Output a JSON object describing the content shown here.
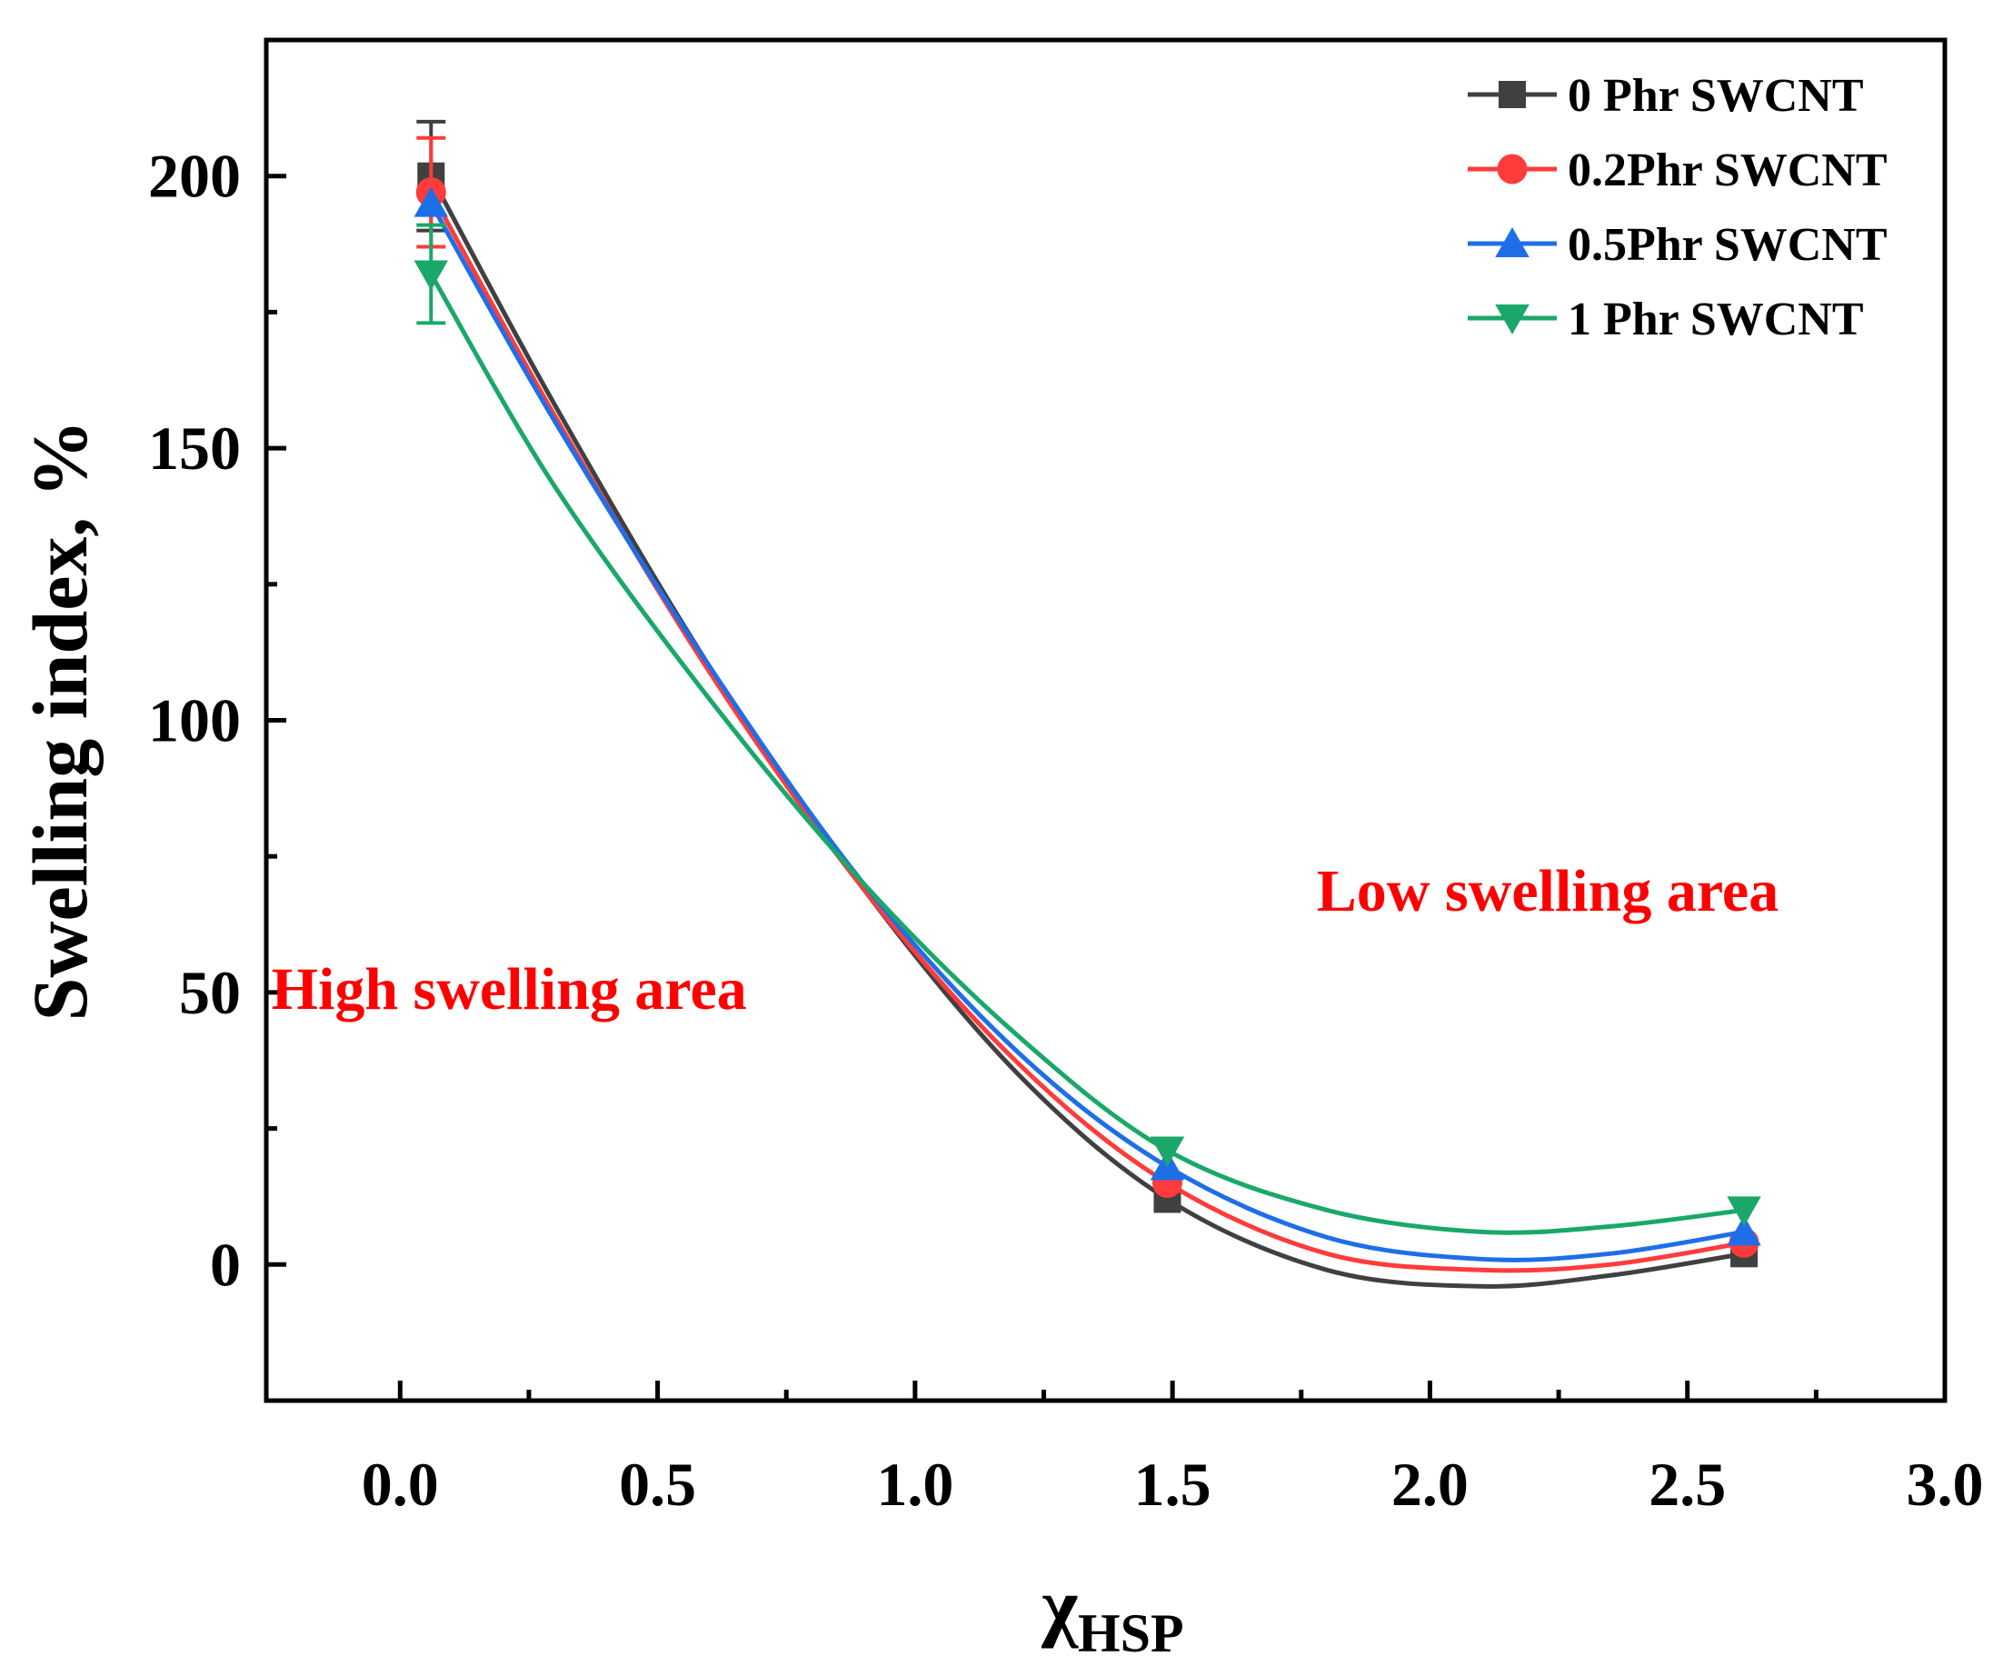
{
  "chart_data": {
    "type": "line",
    "title": "",
    "xlabel": "χ",
    "xlabel_sub": "HSP",
    "ylabel": "Swelling index, %",
    "xlim": [
      -0.26,
      3.0
    ],
    "ylim": [
      -25,
      225
    ],
    "xticks": [
      0.0,
      0.5,
      1.0,
      1.5,
      2.0,
      2.5,
      3.0
    ],
    "xtick_labels": [
      "0.0",
      "0.5",
      "1.0",
      "1.5",
      "2.0",
      "2.5",
      "3.0"
    ],
    "yticks": [
      0,
      50,
      100,
      150,
      200
    ],
    "ytick_labels": [
      "0",
      "50",
      "100",
      "150",
      "200"
    ],
    "grid": false,
    "legend_position": "top-right",
    "series": [
      {
        "name": "0 Phr SWCNT",
        "color": "#404040",
        "marker": "square",
        "x": [
          0.06,
          1.49,
          2.61
        ],
        "y": [
          200,
          12,
          2
        ],
        "err": [
          10,
          0,
          0
        ],
        "curve_x": [
          0.06,
          0.3,
          0.6,
          0.9,
          1.2,
          1.49,
          1.8,
          2.1,
          2.35,
          2.61
        ],
        "curve_y": [
          200,
          158,
          110,
          69,
          35,
          12,
          -1,
          -4,
          -2,
          2
        ]
      },
      {
        "name": "0.2Phr SWCNT",
        "color": "#ff3b3b",
        "marker": "circle",
        "x": [
          0.06,
          1.49,
          2.61
        ],
        "y": [
          197,
          15,
          4
        ],
        "err": [
          10,
          0,
          0
        ],
        "curve_x": [
          0.06,
          0.3,
          0.6,
          0.9,
          1.2,
          1.49,
          1.8,
          2.1,
          2.35,
          2.61
        ],
        "curve_y": [
          197,
          156,
          109,
          69,
          37,
          15,
          2,
          -1,
          0,
          4
        ]
      },
      {
        "name": "0.5Phr SWCNT",
        "color": "#1e6ee8",
        "marker": "triangle-up",
        "x": [
          0.06,
          1.49,
          2.61
        ],
        "y": [
          195,
          18,
          6
        ],
        "err": [
          0,
          0,
          0
        ],
        "curve_x": [
          0.06,
          0.3,
          0.6,
          0.9,
          1.2,
          1.49,
          1.8,
          2.1,
          2.35,
          2.61
        ],
        "curve_y": [
          195,
          155,
          110,
          70,
          39,
          18,
          5,
          1,
          2,
          6
        ]
      },
      {
        "name": "1 Phr SWCNT",
        "color": "#1aa86a",
        "marker": "triangle-down",
        "x": [
          0.06,
          1.49,
          2.61
        ],
        "y": [
          182,
          21,
          10
        ],
        "err": [
          9,
          0,
          0
        ],
        "curve_x": [
          0.06,
          0.3,
          0.6,
          0.9,
          1.2,
          1.49,
          1.8,
          2.1,
          2.35,
          2.61
        ],
        "curve_y": [
          182,
          143,
          104,
          70,
          42,
          21,
          10,
          6,
          7,
          10
        ]
      }
    ],
    "annotations": [
      {
        "text": "High swelling area",
        "color": "#ff0000",
        "x": -0.25,
        "y": 47
      },
      {
        "text": "Low swelling area",
        "color": "#ff0000",
        "x": 1.78,
        "y": 65
      }
    ]
  }
}
